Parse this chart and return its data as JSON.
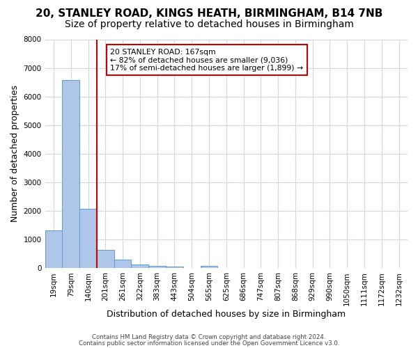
{
  "title_line1": "20, STANLEY ROAD, KINGS HEATH, BIRMINGHAM, B14 7NB",
  "title_line2": "Size of property relative to detached houses in Birmingham",
  "xlabel": "Distribution of detached houses by size in Birmingham",
  "ylabel": "Number of detached properties",
  "bin_labels": [
    "19sqm",
    "79sqm",
    "140sqm",
    "201sqm",
    "261sqm",
    "322sqm",
    "383sqm",
    "443sqm",
    "504sqm",
    "565sqm",
    "625sqm",
    "686sqm",
    "747sqm",
    "807sqm",
    "868sqm",
    "929sqm",
    "990sqm",
    "1050sqm",
    "1111sqm",
    "1172sqm",
    "1232sqm"
  ],
  "bar_values": [
    1320,
    6580,
    2080,
    650,
    290,
    130,
    80,
    60,
    0,
    80,
    0,
    0,
    0,
    0,
    0,
    0,
    0,
    0,
    0,
    0,
    0
  ],
  "bar_color": "#aec6e8",
  "bar_edge_color": "#5b9bd5",
  "vline_color": "#cc0000",
  "annotation_text": "20 STANLEY ROAD: 167sqm\n← 82% of detached houses are smaller (9,036)\n17% of semi-detached houses are larger (1,899) →",
  "annotation_box_color": "#ffffff",
  "annotation_box_edge_color": "#cc0000",
  "ylim": [
    0,
    8000
  ],
  "yticks": [
    0,
    1000,
    2000,
    3000,
    4000,
    5000,
    6000,
    7000,
    8000
  ],
  "footer_line1": "Contains HM Land Registry data © Crown copyright and database right 2024.",
  "footer_line2": "Contains public sector information licensed under the Open Government Licence v3.0.",
  "bg_color": "#ffffff",
  "grid_color": "#d0d8e8",
  "title_fontsize": 11,
  "subtitle_fontsize": 10,
  "tick_fontsize": 7.5,
  "ylabel_fontsize": 9,
  "xlabel_fontsize": 9
}
